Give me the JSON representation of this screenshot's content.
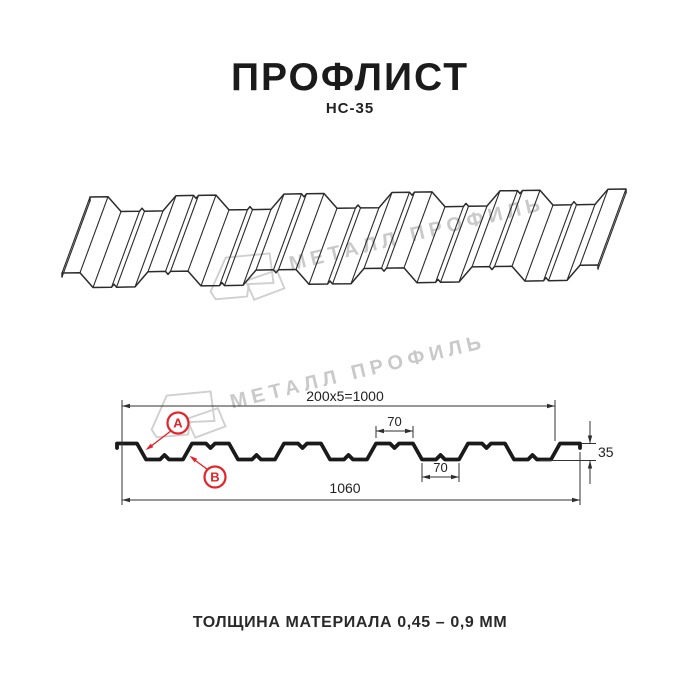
{
  "header": {
    "title": "ПРОФЛИСТ",
    "subtitle": "НС-35"
  },
  "watermark": {
    "text": "МЕТАЛЛ ПРОФИЛЬ"
  },
  "cross_section": {
    "dim_module": "200x5=1000",
    "dim_crest_width": "70",
    "dim_valley_width": "70",
    "dim_height": "35",
    "dim_overall": "1060",
    "marker_a": "А",
    "marker_b": "В"
  },
  "footer": {
    "thickness": "ТОЛЩИНА МАТЕРИАЛА 0,45 – 0,9 ММ"
  },
  "colors": {
    "accent_red": "#e3242b",
    "line_black": "#1f1f1f",
    "watermark_gray": "#c9c9c9"
  }
}
